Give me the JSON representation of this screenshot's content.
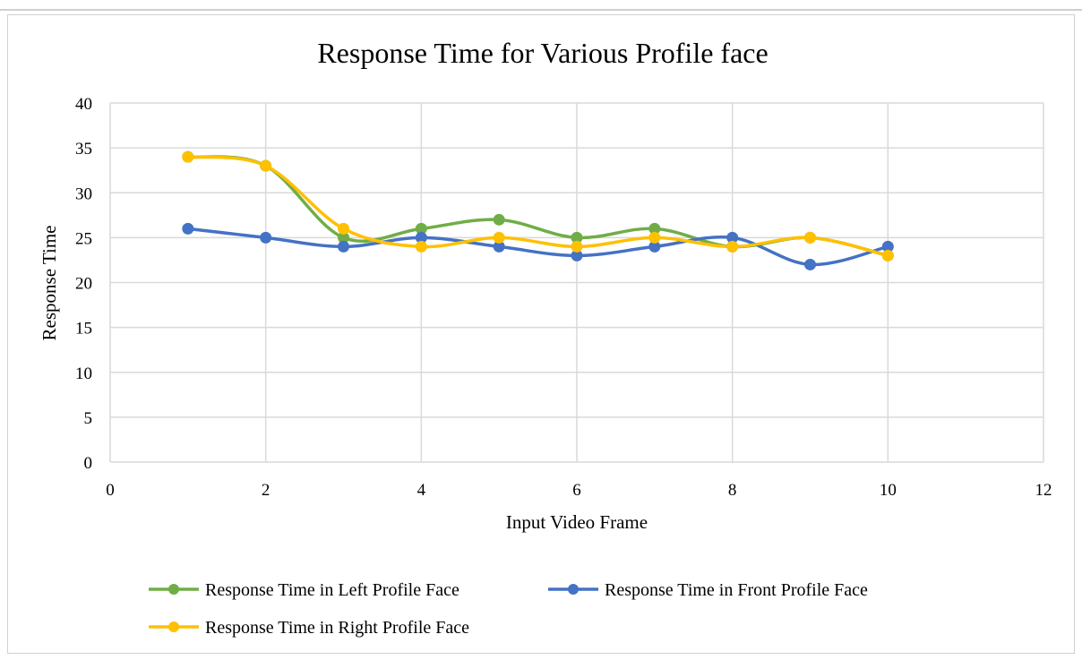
{
  "chart_data": {
    "type": "line",
    "title": "Response Time for Various Profile face",
    "xlabel": "Input Video Frame",
    "ylabel": "Response Time",
    "xlim": [
      0,
      12
    ],
    "ylim": [
      0,
      40
    ],
    "x_ticks": [
      0,
      2,
      4,
      6,
      8,
      10,
      12
    ],
    "y_ticks": [
      0,
      5,
      10,
      15,
      20,
      25,
      30,
      35,
      40
    ],
    "grid": true,
    "legend_position": "bottom",
    "x": [
      1,
      2,
      3,
      4,
      5,
      6,
      7,
      8,
      9,
      10
    ],
    "series": [
      {
        "name": "Response Time in Left Profile Face",
        "color": "#70ad47",
        "values": [
          34,
          33,
          25,
          26,
          27,
          25,
          26,
          24,
          25,
          23
        ]
      },
      {
        "name": "Response Time in Front Profile Face",
        "color": "#4472c4",
        "values": [
          26,
          25,
          24,
          25,
          24,
          23,
          24,
          25,
          22,
          24
        ]
      },
      {
        "name": "Response Time in Right Profile Face",
        "color": "#ffc000",
        "values": [
          34,
          33,
          26,
          24,
          25,
          24,
          25,
          24,
          25,
          23
        ]
      }
    ]
  }
}
